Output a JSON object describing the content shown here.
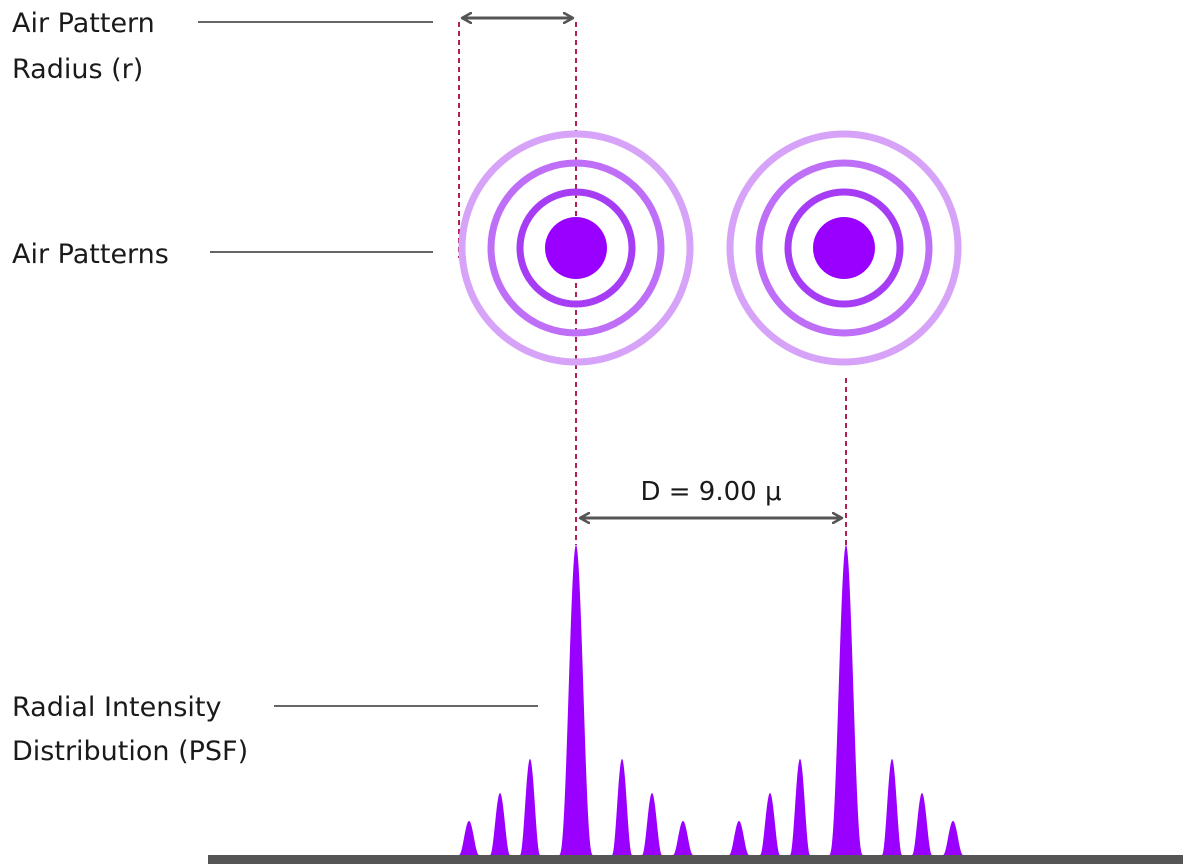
{
  "labels": {
    "radius_line1": "Air Pattern",
    "radius_line2": "Radius (r)",
    "patterns": "Air Patterns",
    "psf_line1": "Radial Intensity",
    "psf_line2": "Distribution (PSF)",
    "distance": "D = 9.00 μ"
  },
  "colors": {
    "core": "#9900ff",
    "ring_inner": "#a63df5",
    "ring_mid": "#bf6ef7",
    "ring_outer": "#d7a3f8",
    "guide": "#b01e5a",
    "arrow": "#555555",
    "leader": "#333333",
    "baseline": "#555555"
  },
  "airy_patterns": [
    {
      "name": "left-airy-pattern",
      "rings": 3
    },
    {
      "name": "right-airy-pattern",
      "rings": 3
    }
  ],
  "psf": {
    "relative_peak_heights": [
      1.0,
      0.31,
      0.2,
      0.11
    ]
  }
}
